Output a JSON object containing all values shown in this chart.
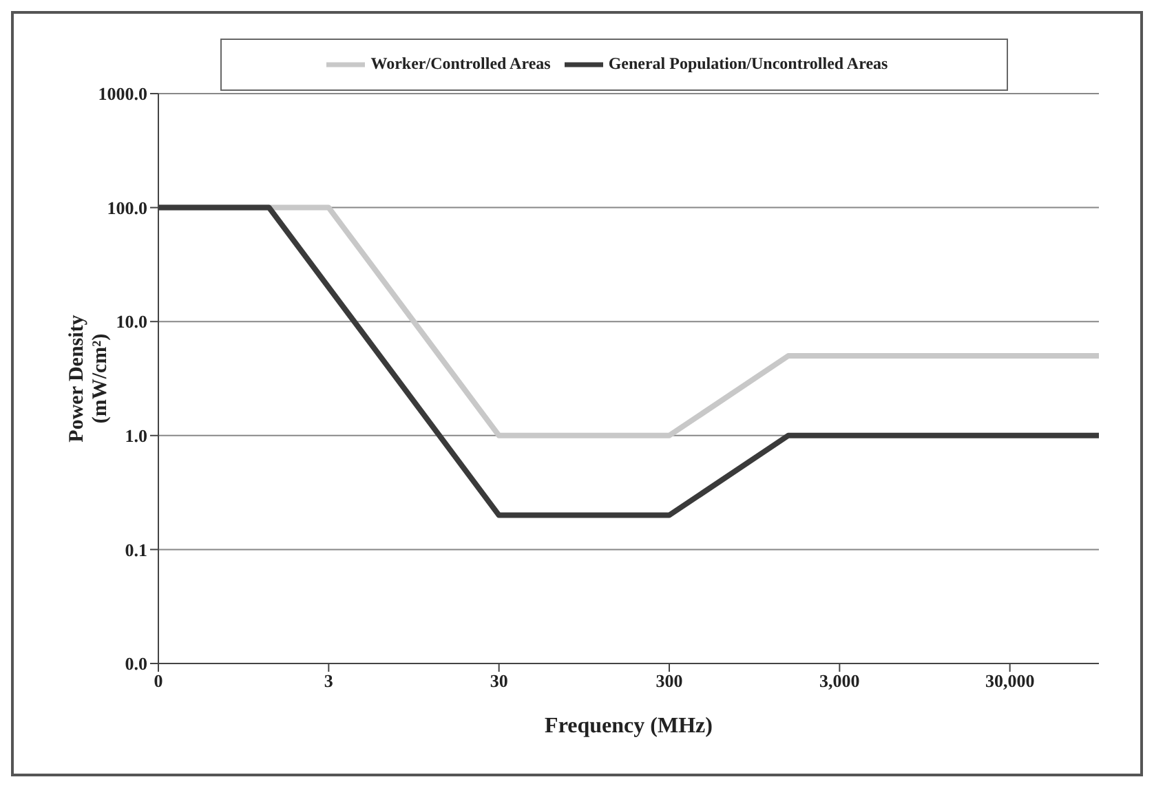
{
  "chart_data": {
    "type": "line",
    "xlabel": "Frequency (MHz)",
    "ylabel": "Power Density (mW/cm²)",
    "log": "xy",
    "xlim": [
      0.3,
      100000
    ],
    "xticks": [
      {
        "value": 0.3,
        "label": "0"
      },
      3,
      30,
      300,
      {
        "value": 3000,
        "label": "3,000"
      },
      {
        "value": 30000,
        "label": "30,000"
      }
    ],
    "ylim": [
      0.01,
      1000
    ],
    "yticks": [
      {
        "value": 0.01,
        "label": "0.0"
      },
      {
        "value": 0.1,
        "label": "0.1"
      },
      {
        "value": 1,
        "label": "1.0"
      },
      {
        "value": 10,
        "label": "10.0"
      },
      {
        "value": 100,
        "label": "100.0"
      },
      {
        "value": 1000,
        "label": "1000.0"
      }
    ],
    "grid": "y",
    "legend": "top",
    "marker": "none",
    "line_style": "solid",
    "series": [
      {
        "name": "Worker/Controlled Areas",
        "color": "#c8c8c8",
        "x": [
          0.3,
          3,
          30,
          300,
          1500,
          100000
        ],
        "values": [
          100,
          100,
          1,
          1,
          5,
          5
        ]
      },
      {
        "name": "General Population/Uncontrolled Areas",
        "color": "#3a3a3a",
        "x": [
          0.3,
          1.34,
          30,
          300,
          1500,
          100000
        ],
        "values": [
          100,
          100,
          0.2,
          0.2,
          1,
          1
        ]
      }
    ]
  }
}
